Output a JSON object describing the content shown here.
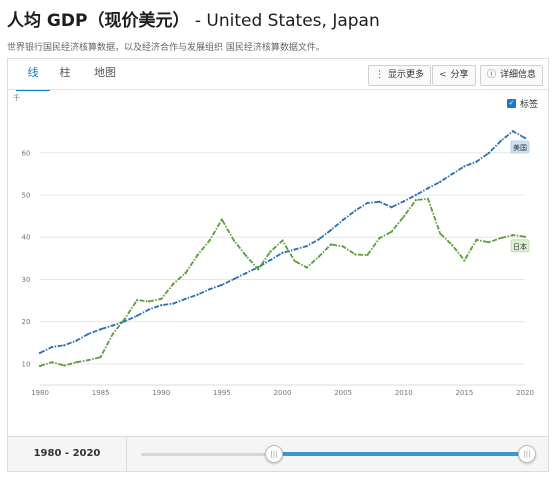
{
  "header": {
    "title_main": "人均 GDP（现价美元）",
    "title_sub": " - United States, Japan",
    "source": "世界银行国民经济核算数据，以及经济合作与发展组织 国民经济核算数据文件。"
  },
  "tabs": [
    {
      "label": "线"
    },
    {
      "label": "柱"
    },
    {
      "label": "地图"
    }
  ],
  "toolbar": {
    "more_label": "显示更多",
    "share_label": "分享",
    "details_label": "详细信息"
  },
  "legend_toggle": {
    "label": "标签",
    "checked": true
  },
  "range": {
    "start": "1980",
    "sep": " - ",
    "end": "2020"
  },
  "chart_data": {
    "type": "line",
    "y_unit": "千",
    "x": [
      1980,
      1981,
      1982,
      1983,
      1984,
      1985,
      1986,
      1987,
      1988,
      1989,
      1990,
      1991,
      1992,
      1993,
      1994,
      1995,
      1996,
      1997,
      1998,
      1999,
      2000,
      2001,
      2002,
      2003,
      2004,
      2005,
      2006,
      2007,
      2008,
      2009,
      2010,
      2011,
      2012,
      2013,
      2014,
      2015,
      2016,
      2017,
      2018,
      2019,
      2020
    ],
    "xticks": [
      1980,
      1985,
      1990,
      1995,
      2000,
      2005,
      2010,
      2015,
      2020
    ],
    "yticks": [
      10,
      20,
      30,
      40,
      50,
      60
    ],
    "xlim": [
      1980,
      2020
    ],
    "ylim": [
      5,
      68
    ],
    "grid": true,
    "series": [
      {
        "name": "美国",
        "color": "#2c6fb3",
        "values": [
          12.6,
          14.0,
          14.4,
          15.5,
          17.1,
          18.2,
          19.1,
          20.1,
          21.4,
          22.9,
          23.9,
          24.3,
          25.4,
          26.4,
          27.7,
          28.7,
          30.1,
          31.5,
          32.9,
          34.6,
          36.3,
          37.1,
          37.9,
          39.5,
          41.7,
          44.1,
          46.3,
          48.1,
          48.4,
          47.1,
          48.5,
          50.0,
          51.6,
          53.1,
          55.0,
          56.8,
          57.9,
          59.9,
          62.8,
          65.1,
          63.5
        ]
      },
      {
        "name": "日本",
        "color": "#5a9e3c",
        "values": [
          9.5,
          10.4,
          9.6,
          10.4,
          10.9,
          11.6,
          17.1,
          20.7,
          25.1,
          24.8,
          25.4,
          29.0,
          31.5,
          35.8,
          39.3,
          44.2,
          39.2,
          35.6,
          32.4,
          36.6,
          39.2,
          34.4,
          32.8,
          35.4,
          38.3,
          37.8,
          35.9,
          35.8,
          39.8,
          41.3,
          44.9,
          48.8,
          49.1,
          40.9,
          38.1,
          34.5,
          39.4,
          38.8,
          39.8,
          40.5,
          40.1
        ]
      }
    ]
  }
}
